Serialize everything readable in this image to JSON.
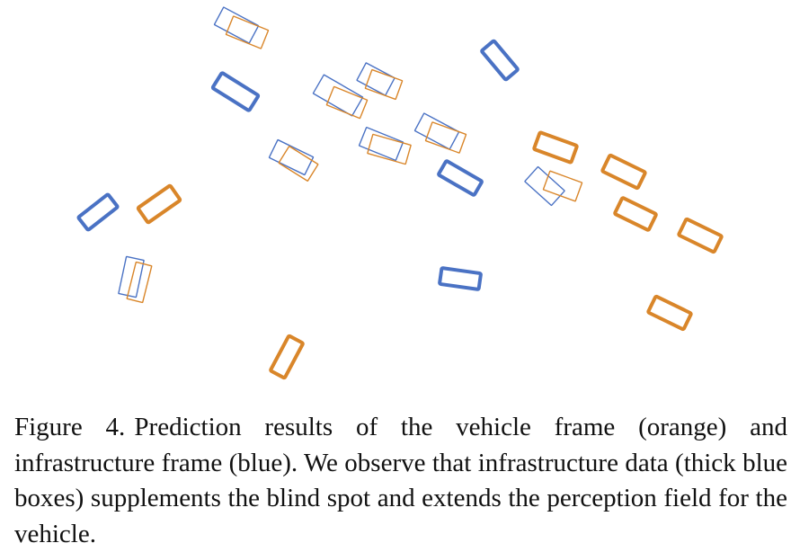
{
  "colors": {
    "vehicle": "#d9862a",
    "infrastructure": "#4a72c4",
    "text": "#111111"
  },
  "caption": {
    "label": "Figure 4.",
    "text": "Prediction results of the vehicle frame (orange) and infrastructure frame (blue). We observe that infrastructure data (thick blue boxes) supplements the blind spot and extends the perception field for the vehicle."
  }
}
